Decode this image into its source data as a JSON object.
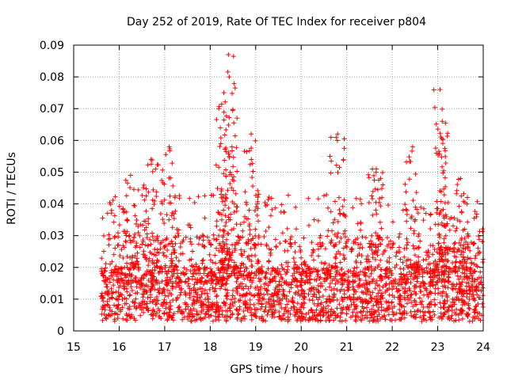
{
  "chart_data": {
    "type": "scatter",
    "title": "Day 252 of 2019, Rate Of TEC Index for receiver p804",
    "xlabel": "GPS time / hours",
    "ylabel": "ROTI / TECUs",
    "xlim": [
      15,
      24
    ],
    "ylim": [
      0,
      0.09
    ],
    "x_ticks": [
      "15",
      "16",
      "17",
      "18",
      "19",
      "20",
      "21",
      "22",
      "23",
      "24"
    ],
    "y_ticks": [
      "0",
      "0.01",
      "0.02",
      "0.03",
      "0.04",
      "0.05",
      "0.06",
      "0.07",
      "0.08",
      "0.09"
    ],
    "grid": true,
    "marker": "+",
    "color": "#ff0000",
    "series": [
      {
        "name": "p804",
        "data_start_hour": 15.6,
        "data_end_hour": 24.0,
        "baseline_range": [
          0.003,
          0.02
        ],
        "notable_peaks": [
          {
            "x": 16.25,
            "y": 0.049
          },
          {
            "x": 16.7,
            "y": 0.054
          },
          {
            "x": 17.1,
            "y": 0.058
          },
          {
            "x": 18.3,
            "y": 0.075
          },
          {
            "x": 18.4,
            "y": 0.087
          },
          {
            "x": 18.42,
            "y": 0.08
          },
          {
            "x": 18.9,
            "y": 0.062
          },
          {
            "x": 20.8,
            "y": 0.062
          },
          {
            "x": 21.65,
            "y": 0.051
          },
          {
            "x": 22.45,
            "y": 0.058
          },
          {
            "x": 23.05,
            "y": 0.076
          },
          {
            "x": 23.1,
            "y": 0.066
          },
          {
            "x": 23.5,
            "y": 0.048
          }
        ]
      }
    ]
  }
}
